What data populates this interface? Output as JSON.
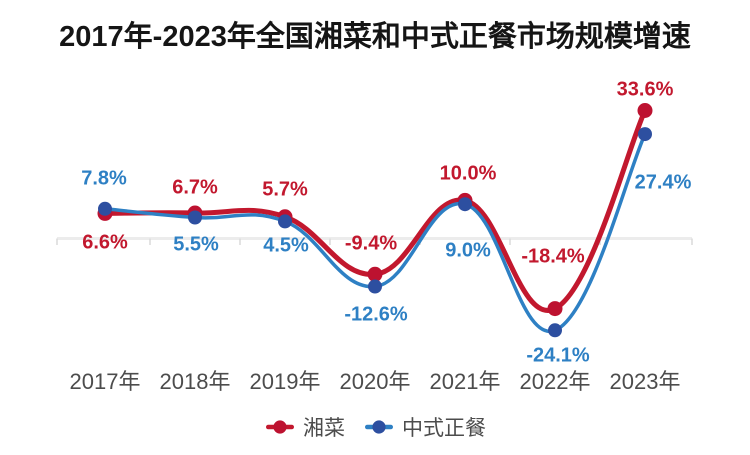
{
  "chart_data": {
    "type": "line",
    "title": "2017年-2023年全国湘菜和中式正餐市场规模增速",
    "categories": [
      "2017年",
      "2018年",
      "2019年",
      "2020年",
      "2021年",
      "2022年",
      "2023年"
    ],
    "series": [
      {
        "name": "湘菜",
        "values": [
          6.6,
          6.7,
          5.7,
          -9.4,
          10.0,
          -18.4,
          33.6
        ],
        "labels": [
          "6.6%",
          "6.7%",
          "5.7%",
          "-9.4%",
          "10.0%",
          "-18.4%",
          "33.6%"
        ],
        "color": "#c2182e",
        "point_color": "#bd1230",
        "line_width": 5,
        "point_radius": 7.5,
        "label_offsets": [
          [
            0,
            30
          ],
          [
            0,
            -25
          ],
          [
            0,
            -27
          ],
          [
            -4,
            -30
          ],
          [
            3,
            -26
          ],
          [
            -2,
            -52
          ],
          [
            0,
            -20
          ]
        ]
      },
      {
        "name": "中式正餐",
        "values": [
          7.8,
          5.5,
          4.5,
          -12.6,
          9.0,
          -24.1,
          27.4
        ],
        "labels": [
          "7.8%",
          "5.5%",
          "4.5%",
          "-12.6%",
          "9.0%",
          "-24.1%",
          "27.4%"
        ],
        "color": "#2e80c4",
        "point_color": "#2d4fa0",
        "line_width": 3.5,
        "point_radius": 7,
        "label_offsets": [
          [
            -1,
            -30
          ],
          [
            1,
            27
          ],
          [
            1,
            25
          ],
          [
            1,
            28
          ],
          [
            3,
            47
          ],
          [
            3,
            26
          ],
          [
            18,
            49
          ]
        ]
      }
    ],
    "ylim": [
      -30,
      40
    ],
    "grid": false,
    "legend_position": "bottom-center",
    "axis": {
      "zero_line": true,
      "line_color": "#ececec",
      "tick_color": "#dcdcdc",
      "label_color": "#4c4c4c"
    }
  }
}
